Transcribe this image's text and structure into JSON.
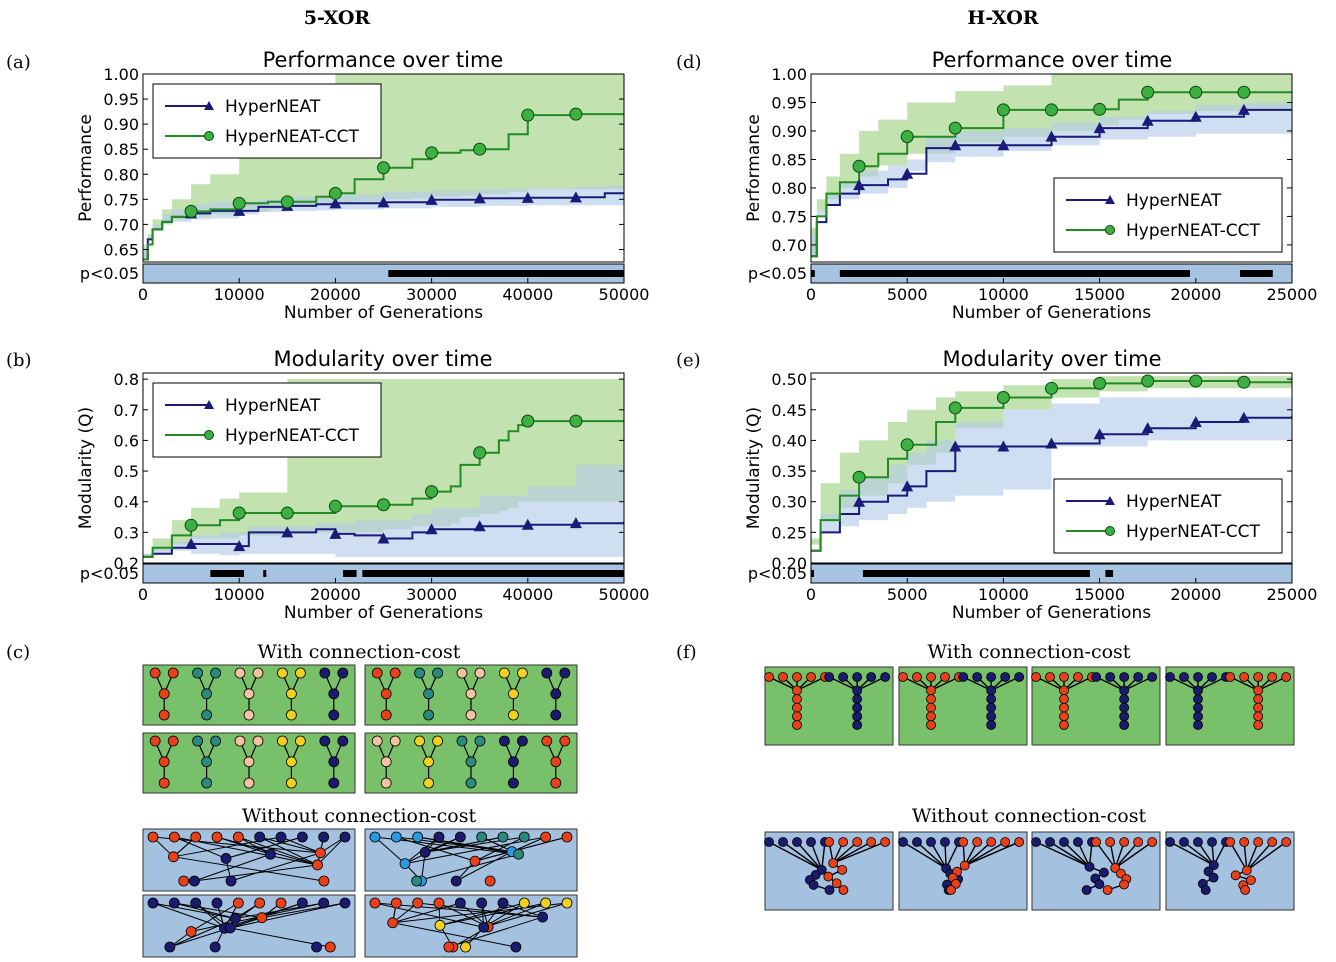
{
  "headers": {
    "left": "5-XOR",
    "right": "H-XOR"
  },
  "panel_labels": {
    "a": "(a)",
    "b": "(b)",
    "c": "(c)",
    "d": "(d)",
    "e": "(e)",
    "f": "(f)"
  },
  "network_panels": {
    "c": {
      "with_label": "With connection-cost",
      "without_label": "Without connection-cost",
      "grid": "2x2"
    },
    "f": {
      "with_label": "With connection-cost",
      "without_label": "Without connection-cost",
      "grid": "1x4"
    }
  },
  "colors": {
    "hyperneat": "#1a1a7a",
    "hyperneat_band": "#b6cde8",
    "cct": "#228B22",
    "cct_band": "#a8d58f",
    "cct_marker": "#3cb043",
    "sig_strip": "#a6c3e2",
    "net_green_bg": "#78c06a",
    "net_blue_bg": "#a4c1e0",
    "node_red": "#e8411a",
    "node_navy": "#1a1a6e",
    "node_teal": "#2a8a80",
    "node_peach": "#f4c4a0",
    "node_yellow": "#f0d020",
    "node_lightblue": "#2a9ae0"
  },
  "chart_data": [
    {
      "id": "a",
      "type": "line",
      "title": "Performance over time",
      "xlabel": "Number of Generations",
      "ylabel": "Performance",
      "xlim": [
        0,
        50000
      ],
      "ylim": [
        0.625,
        1.0
      ],
      "xticks": [
        "0",
        "10000",
        "20000",
        "30000",
        "40000",
        "50000"
      ],
      "yticks": [
        "0.65",
        "0.70",
        "0.75",
        "0.80",
        "0.85",
        "0.90",
        "0.95",
        "1.00"
      ],
      "legend": "top-left",
      "sig_label": "p<0.05",
      "sig_ranges": [
        [
          25500,
          50000
        ]
      ],
      "series": [
        {
          "name": "HyperNEAT",
          "marker": "triangle",
          "x": [
            0,
            500,
            1000,
            2000,
            3000,
            5000,
            7000,
            10000,
            12000,
            15000,
            18000,
            20000,
            25000,
            30000,
            35000,
            40000,
            45000,
            48000,
            50000
          ],
          "y": [
            0.63,
            0.67,
            0.69,
            0.705,
            0.715,
            0.722,
            0.727,
            0.727,
            0.735,
            0.737,
            0.74,
            0.742,
            0.744,
            0.749,
            0.752,
            0.753,
            0.754,
            0.762,
            0.762
          ],
          "lo": [
            0.63,
            0.66,
            0.68,
            0.69,
            0.7,
            0.705,
            0.71,
            0.712,
            0.72,
            0.725,
            0.727,
            0.728,
            0.73,
            0.732,
            0.735,
            0.737,
            0.738,
            0.738,
            0.738
          ],
          "hi": [
            0.63,
            0.68,
            0.7,
            0.72,
            0.73,
            0.74,
            0.745,
            0.745,
            0.75,
            0.755,
            0.758,
            0.76,
            0.765,
            0.768,
            0.77,
            0.772,
            0.775,
            0.778,
            0.778
          ],
          "marker_x": [
            5000,
            10000,
            15000,
            20000,
            25000,
            30000,
            35000,
            40000,
            45000
          ],
          "marker_y": [
            0.722,
            0.727,
            0.737,
            0.742,
            0.744,
            0.749,
            0.752,
            0.753,
            0.754
          ]
        },
        {
          "name": "HyperNEAT-CCT",
          "marker": "circle",
          "x": [
            0,
            500,
            1000,
            2000,
            3000,
            5000,
            7000,
            10000,
            13000,
            15000,
            18000,
            20000,
            22000,
            25000,
            28000,
            30000,
            33000,
            35000,
            38000,
            40000,
            45000,
            50000
          ],
          "y": [
            0.63,
            0.66,
            0.69,
            0.705,
            0.715,
            0.726,
            0.73,
            0.742,
            0.745,
            0.745,
            0.755,
            0.762,
            0.79,
            0.813,
            0.83,
            0.843,
            0.848,
            0.85,
            0.88,
            0.918,
            0.92,
            0.92
          ],
          "lo": [
            0.63,
            0.65,
            0.67,
            0.69,
            0.7,
            0.71,
            0.715,
            0.72,
            0.725,
            0.73,
            0.735,
            0.74,
            0.74,
            0.745,
            0.75,
            0.752,
            0.755,
            0.757,
            0.76,
            0.765,
            0.77,
            0.77
          ],
          "hi": [
            0.63,
            0.68,
            0.71,
            0.73,
            0.75,
            0.78,
            0.8,
            0.85,
            0.95,
            0.95,
            0.95,
            1.0,
            1.0,
            1.0,
            1.0,
            1.0,
            1.0,
            1.0,
            1.0,
            1.0,
            1.0,
            1.0
          ],
          "marker_x": [
            5000,
            10000,
            15000,
            20000,
            25000,
            30000,
            35000,
            40000,
            45000
          ],
          "marker_y": [
            0.726,
            0.742,
            0.745,
            0.762,
            0.813,
            0.843,
            0.85,
            0.918,
            0.92
          ]
        }
      ]
    },
    {
      "id": "b",
      "type": "line",
      "title": "Modularity over time",
      "xlabel": "Number of Generations",
      "ylabel": "Modularity (Q)",
      "xlim": [
        0,
        50000
      ],
      "ylim": [
        0.2,
        0.82
      ],
      "xticks": [
        "0",
        "10000",
        "20000",
        "30000",
        "40000",
        "50000"
      ],
      "yticks": [
        "0.2",
        "0.3",
        "0.4",
        "0.5",
        "0.6",
        "0.7",
        "0.8"
      ],
      "legend": "top-left",
      "sig_label": "p<0.05",
      "sig_ranges": [
        [
          7000,
          10500
        ],
        [
          12500,
          12800
        ],
        [
          20800,
          22200
        ],
        [
          22800,
          50000
        ]
      ],
      "series": [
        {
          "name": "HyperNEAT",
          "marker": "triangle",
          "x": [
            0,
            1000,
            3000,
            5000,
            8000,
            10000,
            11000,
            15000,
            18000,
            20000,
            22000,
            25000,
            28000,
            30000,
            35000,
            40000,
            45000,
            50000
          ],
          "y": [
            0.22,
            0.23,
            0.25,
            0.262,
            0.262,
            0.255,
            0.3,
            0.3,
            0.31,
            0.295,
            0.29,
            0.28,
            0.3,
            0.31,
            0.32,
            0.325,
            0.33,
            0.335
          ],
          "lo": [
            0.21,
            0.22,
            0.23,
            0.24,
            0.23,
            0.225,
            0.23,
            0.23,
            0.23,
            0.23,
            0.22,
            0.22,
            0.22,
            0.22,
            0.22,
            0.22,
            0.22,
            0.22
          ],
          "hi": [
            0.23,
            0.25,
            0.27,
            0.29,
            0.3,
            0.3,
            0.32,
            0.32,
            0.33,
            0.33,
            0.34,
            0.34,
            0.36,
            0.38,
            0.42,
            0.45,
            0.52,
            0.54
          ],
          "marker_x": [
            5000,
            10000,
            15000,
            20000,
            25000,
            30000,
            35000,
            40000,
            45000
          ],
          "marker_y": [
            0.262,
            0.255,
            0.3,
            0.295,
            0.28,
            0.31,
            0.32,
            0.325,
            0.33
          ]
        },
        {
          "name": "HyperNEAT-CCT",
          "marker": "circle",
          "x": [
            0,
            1000,
            3000,
            5000,
            8000,
            10000,
            15000,
            20000,
            25000,
            28000,
            30000,
            32000,
            33000,
            35000,
            37000,
            38000,
            39000,
            40000,
            45000,
            50000
          ],
          "y": [
            0.22,
            0.25,
            0.29,
            0.323,
            0.34,
            0.363,
            0.363,
            0.385,
            0.39,
            0.41,
            0.433,
            0.45,
            0.52,
            0.56,
            0.6,
            0.63,
            0.65,
            0.663,
            0.663,
            0.663
          ],
          "lo": [
            0.21,
            0.22,
            0.24,
            0.26,
            0.28,
            0.28,
            0.29,
            0.3,
            0.3,
            0.31,
            0.32,
            0.32,
            0.33,
            0.35,
            0.36,
            0.37,
            0.38,
            0.4,
            0.4,
            0.4
          ],
          "hi": [
            0.23,
            0.28,
            0.34,
            0.38,
            0.41,
            0.43,
            0.8,
            0.8,
            0.8,
            0.8,
            0.8,
            0.8,
            0.8,
            0.8,
            0.8,
            0.8,
            0.8,
            0.8,
            0.8,
            0.8
          ],
          "marker_x": [
            5000,
            10000,
            15000,
            20000,
            25000,
            30000,
            35000,
            40000,
            45000
          ],
          "marker_y": [
            0.323,
            0.363,
            0.363,
            0.385,
            0.39,
            0.433,
            0.56,
            0.663,
            0.663
          ]
        }
      ]
    },
    {
      "id": "d",
      "type": "line",
      "title": "Performance over time",
      "xlabel": "Number of Generations",
      "ylabel": "Performance",
      "xlim": [
        0,
        25000
      ],
      "ylim": [
        0.67,
        1.0
      ],
      "xticks": [
        "0",
        "5000",
        "10000",
        "15000",
        "20000",
        "25000"
      ],
      "yticks": [
        "0.70",
        "0.75",
        "0.80",
        "0.85",
        "0.90",
        "0.95",
        "1.00"
      ],
      "legend": "bottom-right",
      "sig_label": "p<0.05",
      "sig_ranges": [
        [
          0,
          200
        ],
        [
          1500,
          19700
        ],
        [
          22300,
          24000
        ]
      ],
      "series": [
        {
          "name": "HyperNEAT",
          "marker": "triangle",
          "x": [
            0,
            300,
            800,
            1500,
            2500,
            4000,
            5000,
            6000,
            7500,
            10000,
            12500,
            15000,
            17500,
            20000,
            22500,
            25000
          ],
          "y": [
            0.68,
            0.74,
            0.77,
            0.79,
            0.805,
            0.815,
            0.825,
            0.87,
            0.875,
            0.875,
            0.89,
            0.905,
            0.918,
            0.925,
            0.937,
            0.937
          ],
          "lo": [
            0.68,
            0.72,
            0.75,
            0.77,
            0.78,
            0.79,
            0.8,
            0.83,
            0.845,
            0.855,
            0.865,
            0.875,
            0.885,
            0.89,
            0.895,
            0.895
          ],
          "hi": [
            0.68,
            0.76,
            0.79,
            0.81,
            0.83,
            0.84,
            0.85,
            0.89,
            0.9,
            0.905,
            0.915,
            0.925,
            0.935,
            0.945,
            0.95,
            0.95
          ],
          "marker_x": [
            2500,
            5000,
            7500,
            10000,
            12500,
            15000,
            17500,
            20000,
            22500
          ],
          "marker_y": [
            0.805,
            0.825,
            0.875,
            0.875,
            0.89,
            0.905,
            0.918,
            0.925,
            0.937
          ]
        },
        {
          "name": "HyperNEAT-CCT",
          "marker": "circle",
          "x": [
            0,
            300,
            800,
            1500,
            2500,
            3500,
            5000,
            7500,
            10000,
            12500,
            15000,
            16000,
            17500,
            20000,
            22500,
            25000
          ],
          "y": [
            0.68,
            0.75,
            0.79,
            0.81,
            0.838,
            0.86,
            0.89,
            0.905,
            0.937,
            0.937,
            0.938,
            0.955,
            0.968,
            0.968,
            0.968,
            0.968
          ],
          "lo": [
            0.68,
            0.73,
            0.76,
            0.78,
            0.8,
            0.82,
            0.84,
            0.86,
            0.88,
            0.89,
            0.9,
            0.91,
            0.92,
            0.93,
            0.935,
            0.935
          ],
          "hi": [
            0.68,
            0.78,
            0.82,
            0.86,
            0.9,
            0.92,
            0.95,
            0.97,
            0.98,
            1.0,
            1.0,
            1.0,
            1.0,
            1.0,
            1.0,
            1.0
          ],
          "marker_x": [
            2500,
            5000,
            7500,
            10000,
            12500,
            15000,
            17500,
            20000,
            22500
          ],
          "marker_y": [
            0.838,
            0.89,
            0.905,
            0.937,
            0.937,
            0.938,
            0.968,
            0.968,
            0.968
          ]
        }
      ]
    },
    {
      "id": "e",
      "type": "line",
      "title": "Modularity over time",
      "xlabel": "Number of Generations",
      "ylabel": "Modularity (Q)",
      "xlim": [
        0,
        25000
      ],
      "ylim": [
        0.2,
        0.51
      ],
      "xticks": [
        "0",
        "5000",
        "10000",
        "15000",
        "20000",
        "25000"
      ],
      "yticks": [
        "0.20",
        "0.25",
        "0.30",
        "0.35",
        "0.40",
        "0.45",
        "0.50"
      ],
      "legend": "bottom-right",
      "sig_label": "p<0.05",
      "sig_ranges": [
        [
          0,
          150
        ],
        [
          2700,
          14500
        ],
        [
          15300,
          15700
        ]
      ],
      "series": [
        {
          "name": "HyperNEAT",
          "marker": "triangle",
          "x": [
            0,
            500,
            1500,
            2500,
            4000,
            5000,
            6000,
            7500,
            10000,
            12500,
            15000,
            17500,
            20000,
            22500,
            25000
          ],
          "y": [
            0.22,
            0.25,
            0.28,
            0.3,
            0.31,
            0.325,
            0.35,
            0.39,
            0.39,
            0.395,
            0.41,
            0.42,
            0.43,
            0.437,
            0.44
          ],
          "lo": [
            0.21,
            0.23,
            0.25,
            0.26,
            0.27,
            0.28,
            0.29,
            0.3,
            0.31,
            0.32,
            0.39,
            0.39,
            0.4,
            0.4,
            0.4
          ],
          "hi": [
            0.23,
            0.28,
            0.32,
            0.34,
            0.36,
            0.38,
            0.4,
            0.43,
            0.45,
            0.46,
            0.47,
            0.47,
            0.47,
            0.47,
            0.47
          ],
          "marker_x": [
            2500,
            5000,
            7500,
            10000,
            12500,
            15000,
            17500,
            20000,
            22500
          ],
          "marker_y": [
            0.3,
            0.325,
            0.39,
            0.39,
            0.395,
            0.41,
            0.42,
            0.43,
            0.437
          ]
        },
        {
          "name": "HyperNEAT-CCT",
          "marker": "circle",
          "x": [
            0,
            500,
            1500,
            2500,
            4000,
            5000,
            6500,
            7500,
            10000,
            12500,
            15000,
            17500,
            20000,
            22500,
            25000
          ],
          "y": [
            0.22,
            0.27,
            0.31,
            0.34,
            0.37,
            0.393,
            0.43,
            0.453,
            0.47,
            0.485,
            0.493,
            0.497,
            0.497,
            0.495,
            0.497
          ],
          "lo": [
            0.21,
            0.24,
            0.27,
            0.29,
            0.31,
            0.33,
            0.36,
            0.38,
            0.42,
            0.45,
            0.47,
            0.48,
            0.485,
            0.485,
            0.485
          ],
          "hi": [
            0.23,
            0.33,
            0.38,
            0.4,
            0.43,
            0.45,
            0.47,
            0.48,
            0.49,
            0.5,
            0.505,
            0.505,
            0.505,
            0.505,
            0.505
          ],
          "marker_x": [
            2500,
            5000,
            7500,
            10000,
            12500,
            15000,
            17500,
            20000,
            22500
          ],
          "marker_y": [
            0.34,
            0.393,
            0.453,
            0.47,
            0.485,
            0.493,
            0.497,
            0.497,
            0.495
          ]
        }
      ]
    }
  ]
}
